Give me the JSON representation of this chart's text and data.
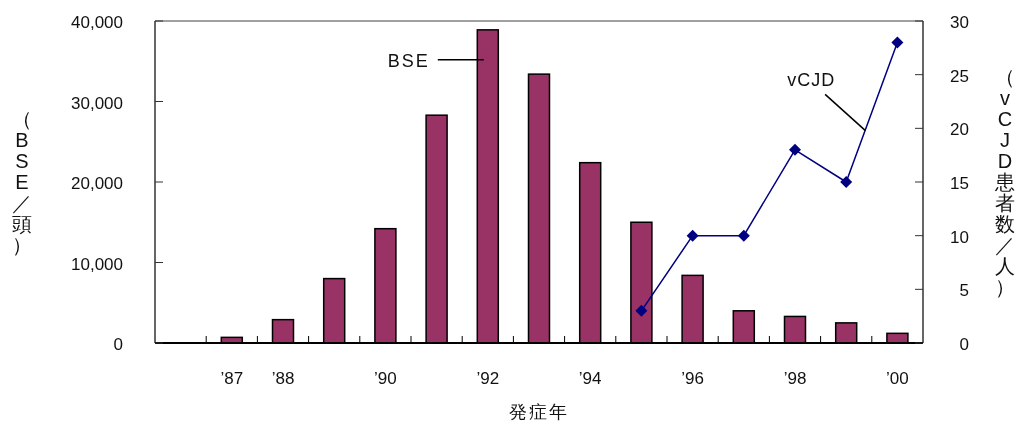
{
  "chart_data": {
    "type": "bar",
    "xlabel": "発症年",
    "ylabel": "（BSE／頭）",
    "y2label": "（vCJD患者数／人）",
    "categories": [
      null,
      "’87",
      "’88",
      null,
      "’90",
      null,
      "’92",
      null,
      "’94",
      null,
      "’96",
      null,
      "’98",
      null,
      "’00"
    ],
    "series": [
      {
        "name": "BSE",
        "color": "#993366",
        "values": [
          null,
          700,
          2900,
          8000,
          14200,
          28300,
          38900,
          33400,
          22400,
          15000,
          8400,
          4000,
          3300,
          2500,
          1200
        ]
      },
      {
        "name": "vCJD",
        "type": "line",
        "axis": "y2",
        "color": "#000080",
        "marker": "diamond",
        "line_style": "solid",
        "values": [
          null,
          null,
          null,
          null,
          null,
          null,
          null,
          null,
          null,
          3,
          10,
          10,
          18,
          15,
          28
        ]
      }
    ],
    "ylim": [
      0,
      40000
    ],
    "yticks": [
      {
        "value": 0,
        "label": "0"
      },
      {
        "value": 10000,
        "label": "10,000"
      },
      {
        "value": 20000,
        "label": "20,000"
      },
      {
        "value": 30000,
        "label": "30,000"
      },
      {
        "value": 40000,
        "label": "40,000"
      }
    ],
    "y2lim": [
      0,
      30
    ],
    "y2ticks": [
      0,
      5,
      10,
      15,
      20,
      25,
      30
    ],
    "grid": false,
    "legend": "top"
  }
}
